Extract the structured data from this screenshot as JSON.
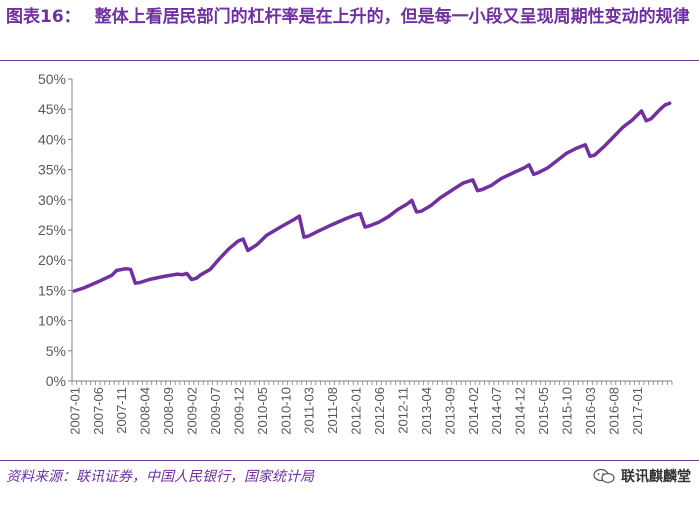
{
  "header": {
    "figure_label": "图表16：",
    "title": "整体上看居民部门的杠杆率是在上升的，但是每一小段又呈现周期性变动的规律"
  },
  "footer": {
    "source": "资料来源：联讯证券，中国人民银行，国家统计局",
    "brand": "联讯麒麟堂"
  },
  "colors": {
    "line": "#7030A0",
    "title": "#7030A0",
    "axis": "#808080",
    "text": "#595959"
  },
  "chart_data": {
    "type": "line",
    "title": "",
    "xlabel": "",
    "ylabel": "",
    "ylim": [
      0,
      0.5
    ],
    "y_ticks": [
      "0%",
      "5%",
      "10%",
      "15%",
      "20%",
      "25%",
      "30%",
      "35%",
      "40%",
      "45%",
      "50%"
    ],
    "x_ticks": [
      "2007-01",
      "2007-06",
      "2007-11",
      "2008-04",
      "2008-09",
      "2009-02",
      "2009-07",
      "2009-12",
      "2010-05",
      "2010-10",
      "2011-03",
      "2011-08",
      "2012-01",
      "2012-06",
      "2012-11",
      "2013-04",
      "2013-09",
      "2014-02",
      "2014-07",
      "2014-12",
      "2015-05",
      "2015-10",
      "2016-03",
      "2016-08",
      "2017-01"
    ],
    "grid": false,
    "legend": "none",
    "series": [
      {
        "name": "",
        "points": [
          [
            "2007-01",
            0.149
          ],
          [
            "2007-03",
            0.154
          ],
          [
            "2007-06",
            0.164
          ],
          [
            "2007-09",
            0.175
          ],
          [
            "2007-10",
            0.183
          ],
          [
            "2007-12",
            0.186
          ],
          [
            "2008-01",
            0.185
          ],
          [
            "2008-02",
            0.162
          ],
          [
            "2008-03",
            0.163
          ],
          [
            "2008-05",
            0.168
          ],
          [
            "2008-08",
            0.173
          ],
          [
            "2008-11",
            0.177
          ],
          [
            "2008-12",
            0.176
          ],
          [
            "2009-01",
            0.178
          ],
          [
            "2009-02",
            0.168
          ],
          [
            "2009-03",
            0.17
          ],
          [
            "2009-04",
            0.176
          ],
          [
            "2009-06",
            0.185
          ],
          [
            "2009-08",
            0.203
          ],
          [
            "2009-10",
            0.219
          ],
          [
            "2009-12",
            0.232
          ],
          [
            "2010-01",
            0.235
          ],
          [
            "2010-02",
            0.216
          ],
          [
            "2010-04",
            0.226
          ],
          [
            "2010-06",
            0.241
          ],
          [
            "2010-09",
            0.255
          ],
          [
            "2010-12",
            0.268
          ],
          [
            "2011-01",
            0.273
          ],
          [
            "2011-02",
            0.238
          ],
          [
            "2011-03",
            0.24
          ],
          [
            "2011-05",
            0.248
          ],
          [
            "2011-08",
            0.259
          ],
          [
            "2011-11",
            0.269
          ],
          [
            "2012-01",
            0.275
          ],
          [
            "2012-02",
            0.277
          ],
          [
            "2012-03",
            0.255
          ],
          [
            "2012-04",
            0.257
          ],
          [
            "2012-06",
            0.263
          ],
          [
            "2012-08",
            0.272
          ],
          [
            "2012-10",
            0.284
          ],
          [
            "2012-12",
            0.293
          ],
          [
            "2013-01",
            0.299
          ],
          [
            "2013-02",
            0.28
          ],
          [
            "2013-03",
            0.281
          ],
          [
            "2013-05",
            0.29
          ],
          [
            "2013-07",
            0.303
          ],
          [
            "2013-10",
            0.318
          ],
          [
            "2013-12",
            0.328
          ],
          [
            "2014-02",
            0.333
          ],
          [
            "2014-03",
            0.315
          ],
          [
            "2014-04",
            0.317
          ],
          [
            "2014-06",
            0.324
          ],
          [
            "2014-08",
            0.335
          ],
          [
            "2014-11",
            0.346
          ],
          [
            "2015-01",
            0.353
          ],
          [
            "2015-02",
            0.358
          ],
          [
            "2015-03",
            0.342
          ],
          [
            "2015-04",
            0.345
          ],
          [
            "2015-06",
            0.353
          ],
          [
            "2015-08",
            0.365
          ],
          [
            "2015-10",
            0.377
          ],
          [
            "2015-12",
            0.385
          ],
          [
            "2016-02",
            0.391
          ],
          [
            "2016-03",
            0.372
          ],
          [
            "2016-04",
            0.374
          ],
          [
            "2016-06",
            0.388
          ],
          [
            "2016-08",
            0.404
          ],
          [
            "2016-10",
            0.42
          ],
          [
            "2016-12",
            0.432
          ],
          [
            "2017-02",
            0.447
          ],
          [
            "2017-03",
            0.431
          ],
          [
            "2017-04",
            0.434
          ],
          [
            "2017-05",
            0.442
          ],
          [
            "2017-06",
            0.45
          ],
          [
            "2017-07",
            0.457
          ],
          [
            "2017-08",
            0.46
          ]
        ]
      }
    ]
  }
}
